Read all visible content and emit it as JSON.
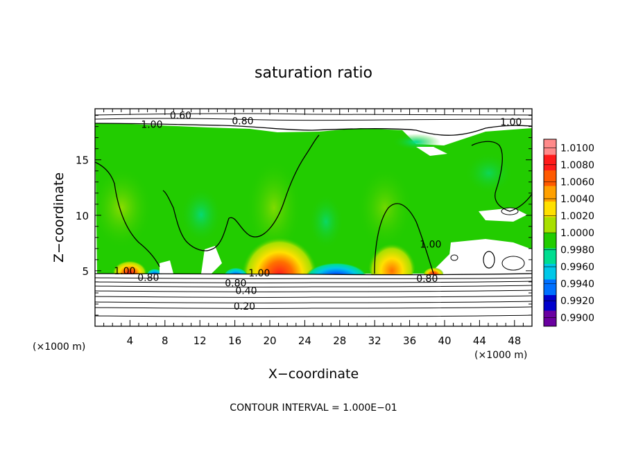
{
  "chart_data": {
    "type": "heatmap",
    "title": "saturation ratio",
    "xlabel": "X−coordinate",
    "ylabel": "Z−coordinate",
    "x_unit_left": "(×1000 m)",
    "x_unit_right": "(×1000 m)",
    "xlim": [
      0,
      50
    ],
    "ylim": [
      0,
      19.6
    ],
    "x_ticks": [
      4,
      8,
      12,
      16,
      20,
      24,
      28,
      32,
      36,
      40,
      44,
      48
    ],
    "y_ticks": [
      5,
      10,
      15
    ],
    "footer": "CONTOUR INTERVAL = 1.000E−01",
    "colorbar": {
      "labels": [
        "1.0100",
        "1.0080",
        "1.0060",
        "1.0040",
        "1.0020",
        "1.0000",
        "0.9980",
        "0.9960",
        "0.9940",
        "0.9920",
        "0.9900"
      ],
      "colors": [
        "#ff8a8a",
        "#ff1a1a",
        "#ff5a00",
        "#ffa000",
        "#ffe000",
        "#a8e000",
        "#22cc00",
        "#00dd90",
        "#00c8e8",
        "#0070ff",
        "#0000cc",
        "#6a00a0"
      ]
    },
    "contour_labels": [
      {
        "text": "0.60",
        "x": 9.8,
        "y": 19.0
      },
      {
        "text": "1.00",
        "x": 6.5,
        "y": 18.2
      },
      {
        "text": "0.80",
        "x": 16.9,
        "y": 18.5
      },
      {
        "text": "1.00",
        "x": 47.6,
        "y": 18.4
      },
      {
        "text": "1.00",
        "x": 3.4,
        "y": 5.0
      },
      {
        "text": "0.80",
        "x": 6.1,
        "y": 4.4
      },
      {
        "text": "1.00",
        "x": 18.8,
        "y": 4.8
      },
      {
        "text": "0.80",
        "x": 16.1,
        "y": 3.9
      },
      {
        "text": "0.40",
        "x": 17.3,
        "y": 3.2
      },
      {
        "text": "0.20",
        "x": 17.1,
        "y": 1.8
      },
      {
        "text": "1.00",
        "x": 38.4,
        "y": 7.4
      },
      {
        "text": "0.80",
        "x": 38.0,
        "y": 4.3
      }
    ]
  }
}
